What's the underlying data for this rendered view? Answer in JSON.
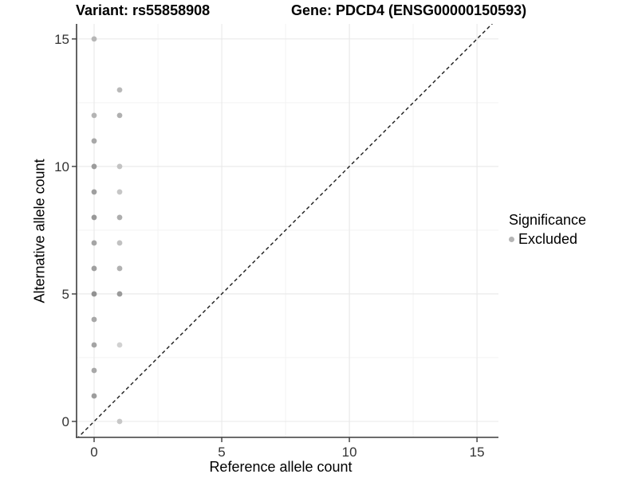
{
  "header": {
    "variant_title": "Variant: rs55858908",
    "gene_title": "Gene: PDCD4 (ENSG00000150593)"
  },
  "legend": {
    "title": "Significance",
    "entries": [
      {
        "label": "Excluded",
        "marker_color": "#b5b5b5"
      }
    ]
  },
  "chart_data": {
    "type": "scatter",
    "title_left": "Variant: rs55858908",
    "title_right": "Gene: PDCD4 (ENSG00000150593)",
    "xlabel": "Reference allele count",
    "ylabel": "Alternative allele count",
    "xlim": [
      -0.6875,
      15.84
    ],
    "ylim": [
      -0.625,
      15.59
    ],
    "x_ticks": [
      0,
      5,
      10,
      15
    ],
    "y_ticks": [
      0,
      5,
      10,
      15
    ],
    "x_minor_ticks": [
      2.5,
      7.5,
      12.5
    ],
    "y_minor_ticks": [
      2.5,
      7.5,
      12.5
    ],
    "grid": "major+minor",
    "legend_position": "right",
    "identity_line": {
      "slope": 1,
      "intercept": 0,
      "style": "dashed",
      "color": "#1a1a1a"
    },
    "series": [
      {
        "name": "Excluded",
        "points": [
          {
            "x": 0,
            "y": 15,
            "color": "#b7b7b7"
          },
          {
            "x": 0,
            "y": 12,
            "color": "#b4b4b4"
          },
          {
            "x": 0,
            "y": 11,
            "color": "#a8a8a8"
          },
          {
            "x": 0,
            "y": 10,
            "color": "#9c9c9c"
          },
          {
            "x": 0,
            "y": 9,
            "color": "#9f9f9f"
          },
          {
            "x": 0,
            "y": 8,
            "color": "#999999"
          },
          {
            "x": 0,
            "y": 7,
            "color": "#a5a5a5"
          },
          {
            "x": 0,
            "y": 6,
            "color": "#a0a0a0"
          },
          {
            "x": 0,
            "y": 5,
            "color": "#929292"
          },
          {
            "x": 0,
            "y": 4,
            "color": "#a8a8a8"
          },
          {
            "x": 0,
            "y": 3,
            "color": "#a4a4a4"
          },
          {
            "x": 0,
            "y": 2,
            "color": "#a8a8a8"
          },
          {
            "x": 0,
            "y": 1,
            "color": "#9d9d9d"
          },
          {
            "x": 1,
            "y": 13,
            "color": "#b9b9b9"
          },
          {
            "x": 1,
            "y": 12,
            "color": "#b0b0b0"
          },
          {
            "x": 1,
            "y": 10,
            "color": "#c3c3c3"
          },
          {
            "x": 1,
            "y": 9,
            "color": "#c6c6c6"
          },
          {
            "x": 1,
            "y": 8,
            "color": "#adadad"
          },
          {
            "x": 1,
            "y": 7,
            "color": "#c1c1c1"
          },
          {
            "x": 1,
            "y": 6,
            "color": "#b1b1b1"
          },
          {
            "x": 1,
            "y": 5,
            "color": "#9a9a9a"
          },
          {
            "x": 1,
            "y": 3,
            "color": "#d1d1d1"
          },
          {
            "x": 1,
            "y": 0,
            "color": "#c7c7c7"
          }
        ]
      }
    ]
  },
  "style": {
    "background": "#ffffff",
    "grid_major_color": "#e8e8e8",
    "grid_minor_color": "#f2f2f2",
    "axis_line_color": "#3c3c3c",
    "tick_color": "#3c3c3c",
    "tick_label_color": "#333333",
    "point_radius": 3.4,
    "tick_label_size": 17
  }
}
